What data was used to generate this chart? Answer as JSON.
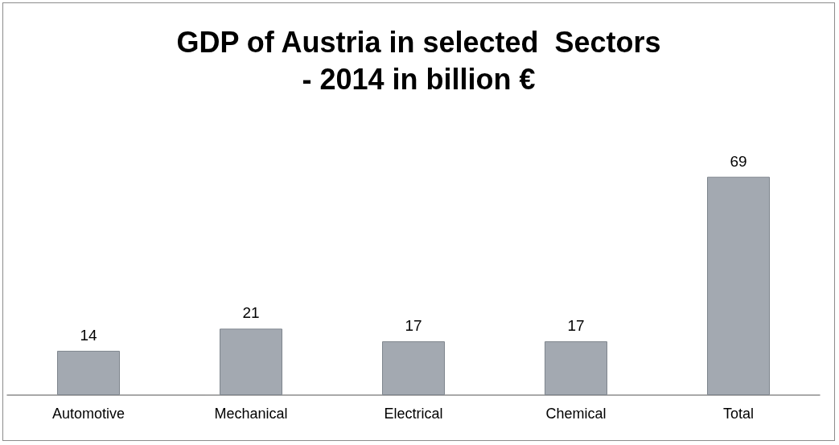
{
  "chart_data": {
    "type": "bar",
    "title": "GDP of Austria in selected  Sectors\n- 2014 in billion €",
    "categories": [
      "Automotive",
      "Mechanical",
      "Electrical",
      "Chemical",
      "Total"
    ],
    "values": [
      14,
      21,
      17,
      17,
      69
    ],
    "color": "#a3a9b1",
    "data_labels": true
  }
}
